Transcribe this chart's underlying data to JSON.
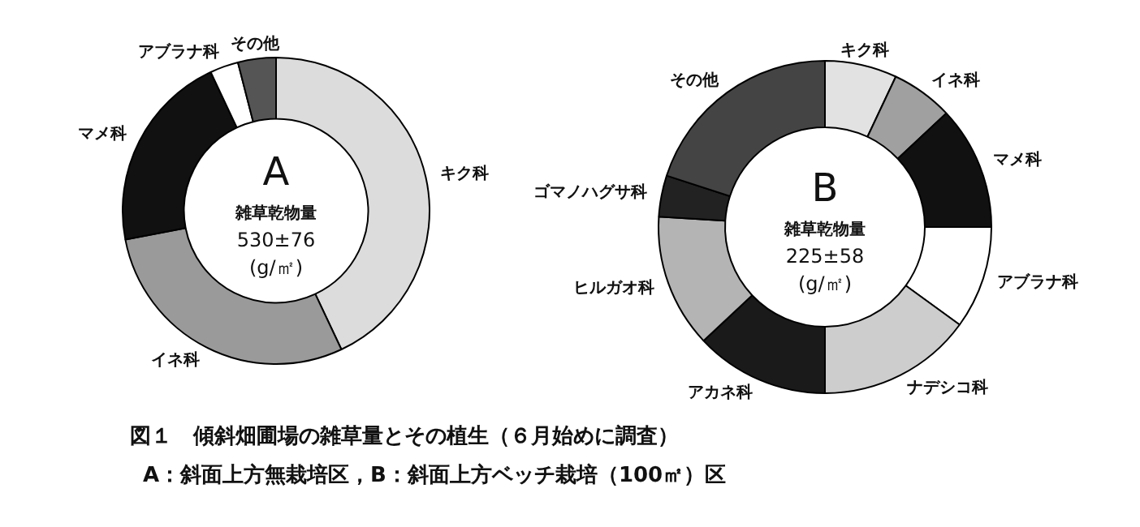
{
  "chart_data": [
    {
      "type": "donut",
      "title": "A",
      "categories": [
        "キク科",
        "イネ科",
        "マメ科",
        "アブラナ科",
        "その他"
      ],
      "values": [
        43,
        29,
        21,
        3,
        4
      ],
      "colors": [
        "#dcdcdc",
        "#9a9a9a",
        "#111111",
        "#ffffff",
        "#555555"
      ],
      "legend": false,
      "annotations": [
        "雑草乾物量",
        "530±76",
        "(g/㎡)",
        "図１　傾斜畑圃場の雑草量とその植生（６月始めに調査）",
        "A：斜面上方無栽培区，B：斜面上方ベッチ栽培（100㎡）区"
      ]
    },
    {
      "type": "donut",
      "title": "B",
      "categories": [
        "キク科",
        "イネ科",
        "マメ科",
        "アブラナ科",
        "ナデシコ科",
        "アカネ科",
        "ヒルガオ科",
        "ゴマノハグサ科",
        "その他"
      ],
      "values": [
        7,
        6,
        12,
        10,
        15,
        13,
        13,
        4,
        20
      ],
      "colors": [
        "#e2e2e2",
        "#a0a0a0",
        "#111111",
        "#ffffff",
        "#cdcdcd",
        "#1a1a1a",
        "#b4b4b4",
        "#222222",
        "#444444"
      ],
      "legend": false,
      "annotations": [
        "雑草乾物量",
        "225±58",
        "(g/㎡)"
      ]
    }
  ]
}
